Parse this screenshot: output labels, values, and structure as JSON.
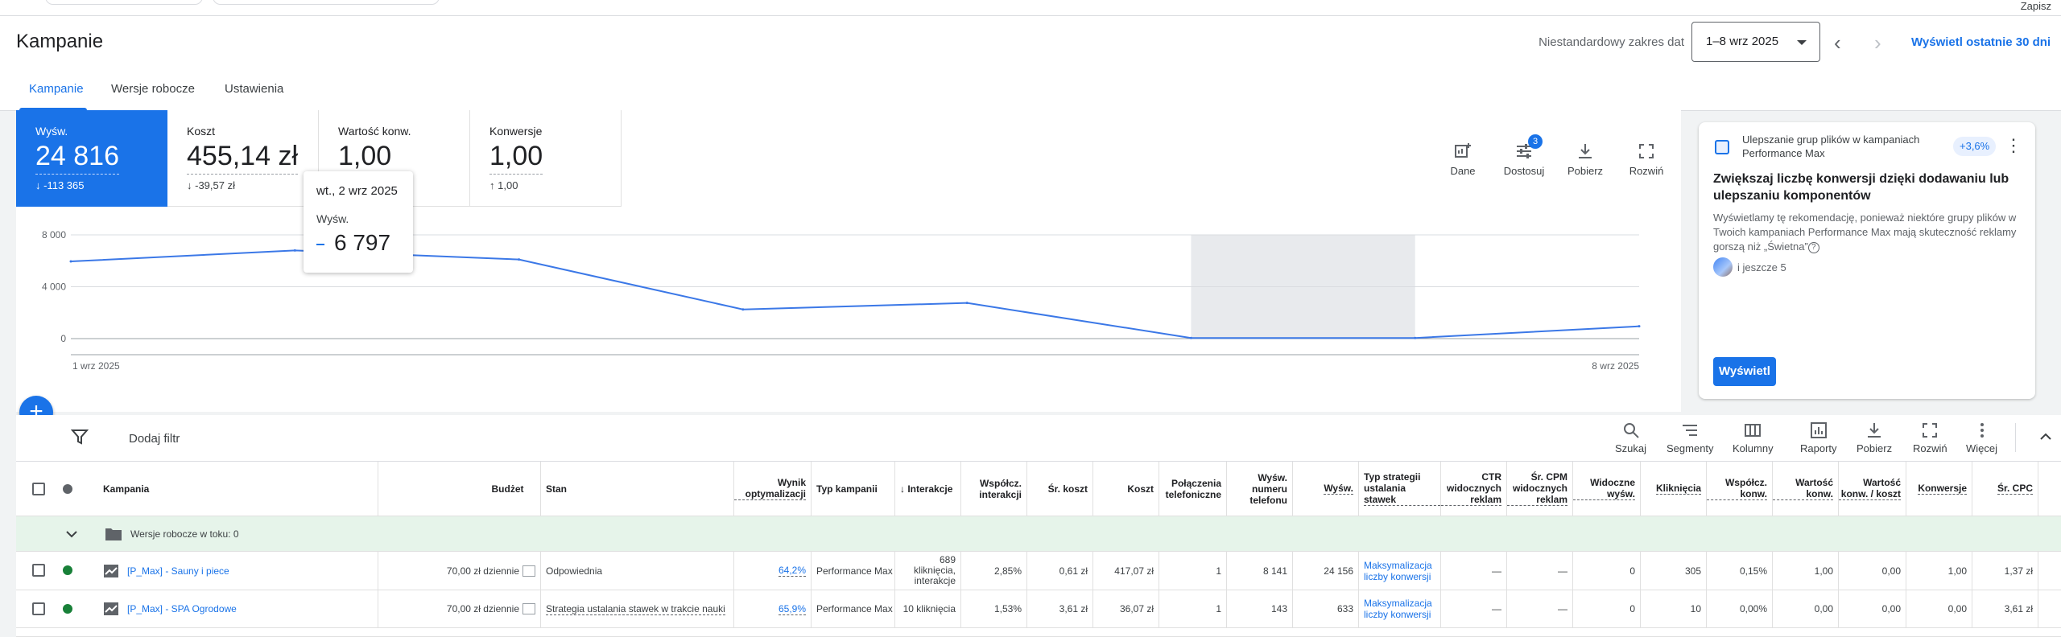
{
  "header": {
    "save_label": "Zapisz",
    "page_title": "Kampanie",
    "date_range_label": "Niestandardowy zakres dat",
    "date_range_value": "1–8 wrz 2025",
    "show_last_30": "Wyświetl ostatnie 30 dni",
    "tabs": [
      {
        "label": "Kampanie"
      },
      {
        "label": "Wersje robocze"
      },
      {
        "label": "Ustawienia"
      }
    ]
  },
  "metrics": [
    {
      "label": "Wyśw.",
      "value": "24 816",
      "delta": "-113 365",
      "direction": "down"
    },
    {
      "label": "Koszt",
      "value": "455,14 zł",
      "delta": "-39,57 zł",
      "direction": "down"
    },
    {
      "label": "Wartość konw.",
      "value": "1,00",
      "delta": ""
    },
    {
      "label": "Konwersje",
      "value": "1,00",
      "delta": "1,00",
      "direction": "up"
    }
  ],
  "chart_tools": [
    {
      "label": "Dane",
      "icon": "add-chart-icon"
    },
    {
      "label": "Dostosuj",
      "icon": "tune-icon",
      "badge": "3"
    },
    {
      "label": "Pobierz",
      "icon": "download-icon"
    },
    {
      "label": "Rozwiń",
      "icon": "fullscreen-icon"
    }
  ],
  "tooltip": {
    "date": "wt., 2 wrz 2025",
    "metric": "Wyśw.",
    "value": "6 797"
  },
  "chart_data": {
    "type": "line",
    "x": [
      "1 wrz 2025",
      "2 wrz 2025",
      "3 wrz 2025",
      "4 wrz 2025",
      "5 wrz 2025",
      "6 wrz 2025",
      "7 wrz 2025",
      "8 wrz 2025"
    ],
    "x_tick_labels": [
      "1 wrz 2025",
      "8 wrz 2025"
    ],
    "series": [
      {
        "values": [
          5950,
          6797,
          6100,
          2250,
          2750,
          50,
          50,
          950
        ],
        "color": "#3b78e7"
      }
    ],
    "y_ticks": [
      "8 000",
      "4 000",
      "0"
    ],
    "ylim": [
      0,
      8000
    ],
    "shaded_range": [
      "6 wrz 2025",
      "7 wrz 2025"
    ],
    "grid": true
  },
  "recommendation": {
    "header": "Ulepszanie grup plików w kampaniach Performance Max",
    "chip": "+3,6%",
    "title": "Zwiększaj liczbę konwersji dzięki dodawaniu lub ulepszaniu komponentów",
    "text": "Wyświetlamy tę rekomendację, ponieważ niektóre grupy plików w Twoich kampaniach Performance Max mają skuteczność reklamy gorszą niż „Świetna”",
    "more": "i jeszcze 5",
    "button": "Wyświetl"
  },
  "filter_bar": {
    "add_filter": "Dodaj filtr",
    "tools": [
      {
        "label": "Szukaj",
        "icon": "search-icon"
      },
      {
        "label": "Segmenty",
        "icon": "segments-icon"
      },
      {
        "label": "Kolumny",
        "icon": "columns-icon"
      },
      {
        "label": "Raporty",
        "icon": "reports-icon"
      },
      {
        "label": "Pobierz",
        "icon": "download-icon"
      },
      {
        "label": "Rozwiń",
        "icon": "fullscreen-icon"
      },
      {
        "label": "Więcej",
        "icon": "more-vert-icon"
      }
    ]
  },
  "table": {
    "columns": [
      "Kampania",
      "Budżet",
      "Stan",
      "Wynik optymalizacji",
      "Typ kampanii",
      "Interakcje",
      "Współcz. interakcji",
      "Śr. koszt",
      "Koszt",
      "Połączenia telefoniczne",
      "Wyśw. numeru telefonu",
      "Wyśw.",
      "Typ strategii ustalania stawek",
      "CTR widocznych reklam",
      "Śr. CPM widocznych reklam",
      "Widoczne wyśw.",
      "Kliknięcia",
      "Współcz. konw.",
      "Wartość konw.",
      "Wartość konw. / koszt",
      "Konwersje",
      "Śr. CPC"
    ],
    "group_row": "Wersje robocze w toku: 0",
    "rows": [
      {
        "campaign": "[P_Max] - Sauny i piece",
        "status_color": "#188038",
        "budget": "70,00 zł dziennie",
        "state": "Odpowiednia",
        "opt_score": "64,2%",
        "type": "Performance Max",
        "interactions": "689 kliknięcia, interakcje",
        "int_rate": "2,85%",
        "avg_cost": "0,61 zł",
        "cost": "417,07 zł",
        "calls": "1",
        "phone_impr": "8 141",
        "impr": "24 156",
        "bid_strategy": "Maksymalizacja liczby konwersji",
        "viewable_ctr": "—",
        "viewable_cpm": "—",
        "viewable_impr": "0",
        "clicks": "305",
        "conv_rate": "0,15%",
        "conv_value": "1,00",
        "value_cost": "0,00",
        "conversions": "1,00",
        "avg_cpc": "1,37 zł"
      },
      {
        "campaign": "[P_Max] - SPA Ogrodowe",
        "status_color": "#188038",
        "budget": "70,00 zł dziennie",
        "state": "Strategia ustalania stawek w trakcie nauki",
        "opt_score": "65,9%",
        "type": "Performance Max",
        "interactions": "10 kliknięcia",
        "int_rate": "1,53%",
        "avg_cost": "3,61 zł",
        "cost": "36,07 zł",
        "calls": "1",
        "phone_impr": "143",
        "impr": "633",
        "bid_strategy": "Maksymalizacja liczby konwersji",
        "viewable_ctr": "—",
        "viewable_cpm": "—",
        "viewable_impr": "0",
        "clicks": "10",
        "conv_rate": "0,00%",
        "conv_value": "0,00",
        "value_cost": "0,00",
        "conversions": "0,00",
        "avg_cpc": "3,61 zł"
      }
    ]
  }
}
